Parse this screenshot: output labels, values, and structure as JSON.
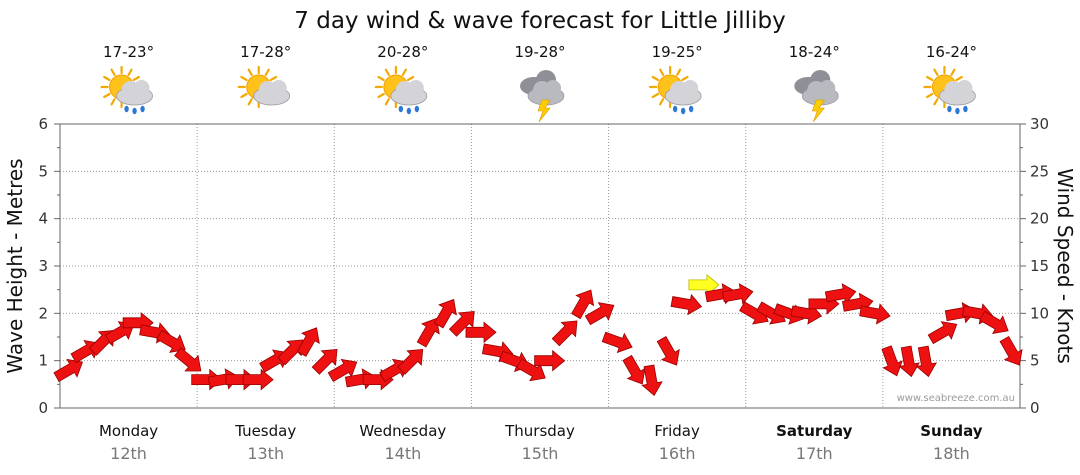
{
  "chart_data": {
    "type": "line",
    "title": "7 day wind & wave forecast for Little Jilliby",
    "ylabel_left": "Wave Height - Metres",
    "ylabel_right": "Wind Speed - Knots",
    "ylim_left": [
      0,
      6
    ],
    "ylim_right": [
      0,
      30
    ],
    "yticks_left": [
      "0",
      "1",
      "2",
      "3",
      "4",
      "5",
      "6"
    ],
    "yticks_right": [
      "0",
      "5",
      "10",
      "15",
      "20",
      "25",
      "30"
    ],
    "grid": true,
    "credit": "www.seabreeze.com.au",
    "days": [
      {
        "day": "Monday",
        "date": "12th",
        "temp": "17-23°",
        "icon": "sun-cloud-rain-icon",
        "bold": false
      },
      {
        "day": "Tuesday",
        "date": "13th",
        "temp": "17-28°",
        "icon": "sun-cloud-icon",
        "bold": false
      },
      {
        "day": "Wednesday",
        "date": "14th",
        "temp": "20-28°",
        "icon": "sun-cloud-rain-icon",
        "bold": false
      },
      {
        "day": "Thursday",
        "date": "15th",
        "temp": "19-28°",
        "icon": "storm-cloud-icon",
        "bold": false
      },
      {
        "day": "Friday",
        "date": "16th",
        "temp": "19-25°",
        "icon": "sun-cloud-rain-icon",
        "bold": false
      },
      {
        "day": "Saturday",
        "date": "17th",
        "temp": "18-24°",
        "icon": "storm-cloud-icon",
        "bold": true
      },
      {
        "day": "Sunday",
        "date": "18th",
        "temp": "16-24°",
        "icon": "sun-cloud-rain-icon",
        "bold": true
      }
    ],
    "series": [
      {
        "name": "wind",
        "unit": "knots",
        "time_step_hours": 3,
        "colors": {
          "normal": "#ee1111",
          "strong": "#ffff22"
        },
        "strong_threshold_knots": 12.5,
        "values": [
          4,
          6,
          7,
          8,
          9,
          8,
          7,
          5,
          3,
          3,
          3,
          3,
          5,
          6,
          7,
          5,
          4,
          3,
          3,
          4,
          5,
          8,
          10,
          9,
          8,
          6,
          5,
          4,
          5,
          8,
          11,
          10,
          7,
          4,
          3,
          6,
          11,
          13,
          12,
          12,
          10,
          10,
          10,
          10,
          11,
          12,
          11,
          10,
          5,
          5,
          5,
          8,
          10,
          10,
          9,
          6
        ],
        "directions_deg": [
          60,
          60,
          45,
          60,
          90,
          100,
          120,
          130,
          90,
          80,
          90,
          90,
          60,
          45,
          30,
          45,
          60,
          80,
          90,
          60,
          45,
          30,
          30,
          45,
          90,
          100,
          110,
          120,
          90,
          45,
          30,
          60,
          110,
          150,
          170,
          150,
          100,
          90,
          80,
          80,
          120,
          120,
          110,
          100,
          90,
          80,
          80,
          100,
          160,
          170,
          170,
          60,
          80,
          100,
          120,
          150
        ]
      }
    ]
  }
}
